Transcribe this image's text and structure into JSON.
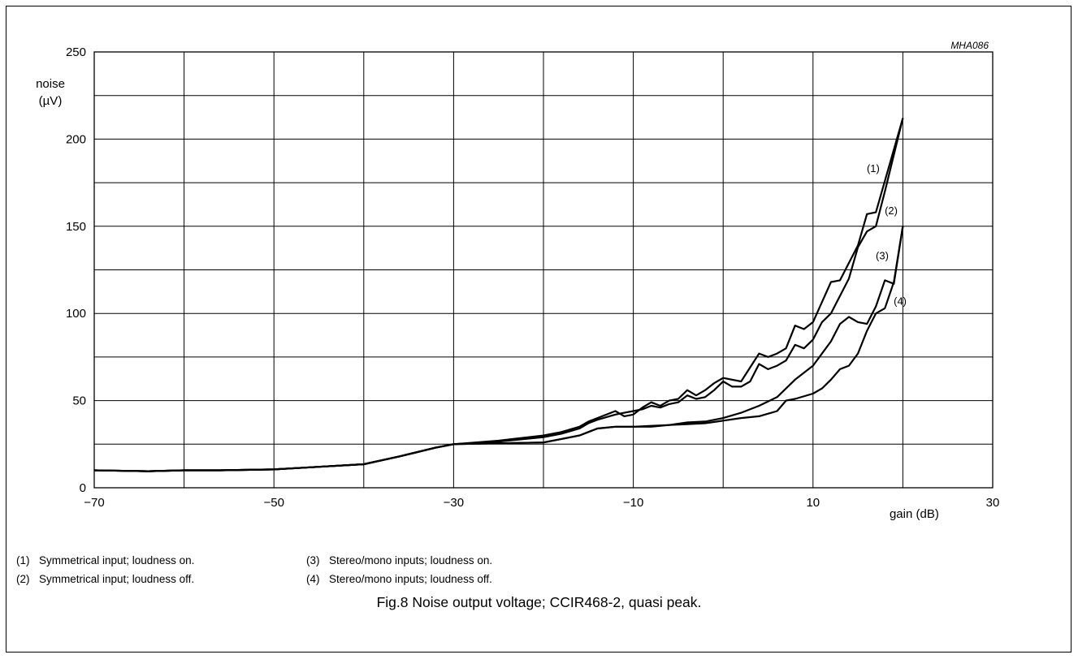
{
  "figure_code": "MHA086",
  "caption": "Fig.8  Noise output voltage; CCIR468-2, quasi peak.",
  "legend": [
    {
      "id": "(1)",
      "text": "Symmetrical input; loudness on."
    },
    {
      "id": "(2)",
      "text": "Symmetrical input; loudness off."
    },
    {
      "id": "(3)",
      "text": "Stereo/mono inputs; loudness on."
    },
    {
      "id": "(4)",
      "text": "Stereo/mono inputs; loudness off."
    }
  ],
  "chart_data": {
    "type": "line",
    "title": "Fig.8  Noise output voltage; CCIR468-2, quasi peak.",
    "xlabel": "gain (dB)",
    "ylabel_line1": "noise",
    "ylabel_line2": "(µV)",
    "xlim": [
      -70,
      30
    ],
    "ylim": [
      0,
      250
    ],
    "x_ticks": [
      -70,
      -50,
      -30,
      -10,
      10,
      30
    ],
    "x_tick_labels": [
      "−70",
      "−50",
      "−30",
      "−10",
      "10",
      "30"
    ],
    "y_ticks": [
      0,
      50,
      100,
      150,
      200,
      250
    ],
    "y_tick_labels": [
      "0",
      "50",
      "100",
      "150",
      "200",
      "250"
    ],
    "x_grid_step": 10,
    "y_grid_step": 25,
    "grid": true,
    "line_color": "#000000",
    "series": [
      {
        "name": "(1)",
        "points": [
          [
            -70,
            10
          ],
          [
            -64,
            9.5
          ],
          [
            -60,
            10
          ],
          [
            -56,
            10
          ],
          [
            -50,
            10.5
          ],
          [
            -45,
            12
          ],
          [
            -40,
            13.5
          ],
          [
            -36,
            18
          ],
          [
            -32,
            23
          ],
          [
            -30,
            25
          ],
          [
            -25,
            27
          ],
          [
            -20,
            30
          ],
          [
            -18,
            32
          ],
          [
            -16,
            35
          ],
          [
            -15,
            38
          ],
          [
            -14,
            40
          ],
          [
            -12,
            44
          ],
          [
            -11,
            41
          ],
          [
            -10,
            42
          ],
          [
            -9,
            46
          ],
          [
            -8,
            49
          ],
          [
            -7,
            47
          ],
          [
            -6,
            50
          ],
          [
            -5,
            51
          ],
          [
            -4,
            56
          ],
          [
            -3,
            53
          ],
          [
            -2,
            56
          ],
          [
            -1,
            60
          ],
          [
            0,
            63
          ],
          [
            2,
            61
          ],
          [
            4,
            77
          ],
          [
            5,
            75
          ],
          [
            6,
            77
          ],
          [
            7,
            80
          ],
          [
            8,
            93
          ],
          [
            9,
            91
          ],
          [
            10,
            95
          ],
          [
            12,
            118
          ],
          [
            13,
            119
          ],
          [
            15,
            139
          ],
          [
            16,
            157
          ],
          [
            17,
            158
          ],
          [
            20,
            212
          ]
        ]
      },
      {
        "name": "(2)",
        "points": [
          [
            -70,
            10
          ],
          [
            -64,
            9.5
          ],
          [
            -60,
            10
          ],
          [
            -56,
            10
          ],
          [
            -50,
            10.5
          ],
          [
            -45,
            12
          ],
          [
            -40,
            13.5
          ],
          [
            -36,
            18
          ],
          [
            -32,
            23
          ],
          [
            -30,
            25
          ],
          [
            -25,
            26.5
          ],
          [
            -20,
            29
          ],
          [
            -18,
            31
          ],
          [
            -16,
            34
          ],
          [
            -15,
            37
          ],
          [
            -14,
            39
          ],
          [
            -12,
            42
          ],
          [
            -11,
            43
          ],
          [
            -10,
            44
          ],
          [
            -9,
            45
          ],
          [
            -8,
            47
          ],
          [
            -7,
            46
          ],
          [
            -6,
            48
          ],
          [
            -5,
            49
          ],
          [
            -4,
            53
          ],
          [
            -3,
            51
          ],
          [
            -2,
            52
          ],
          [
            -1,
            56
          ],
          [
            0,
            61
          ],
          [
            1,
            58
          ],
          [
            2,
            58
          ],
          [
            3,
            61
          ],
          [
            4,
            71
          ],
          [
            5,
            68
          ],
          [
            6,
            70
          ],
          [
            7,
            73
          ],
          [
            8,
            82
          ],
          [
            9,
            80
          ],
          [
            10,
            85
          ],
          [
            11,
            95
          ],
          [
            12,
            100
          ],
          [
            14,
            120
          ],
          [
            15,
            138
          ],
          [
            16,
            147
          ],
          [
            17,
            150
          ],
          [
            18,
            170
          ],
          [
            20,
            212
          ]
        ]
      },
      {
        "name": "(3)",
        "points": [
          [
            -70,
            10
          ],
          [
            -64,
            9.5
          ],
          [
            -60,
            10
          ],
          [
            -56,
            10
          ],
          [
            -50,
            10.5
          ],
          [
            -45,
            12
          ],
          [
            -40,
            13.5
          ],
          [
            -36,
            18
          ],
          [
            -32,
            23
          ],
          [
            -30,
            25
          ],
          [
            -25,
            25.5
          ],
          [
            -20,
            26
          ],
          [
            -18,
            28
          ],
          [
            -16,
            30
          ],
          [
            -15,
            32
          ],
          [
            -14,
            34
          ],
          [
            -12,
            35
          ],
          [
            -10,
            35
          ],
          [
            -8,
            35.5
          ],
          [
            -6,
            36
          ],
          [
            -4,
            37.5
          ],
          [
            -2,
            38
          ],
          [
            0,
            40
          ],
          [
            2,
            43
          ],
          [
            4,
            47
          ],
          [
            6,
            52
          ],
          [
            8,
            62
          ],
          [
            10,
            70
          ],
          [
            12,
            84
          ],
          [
            13,
            94
          ],
          [
            14,
            98
          ],
          [
            15,
            95
          ],
          [
            16,
            94
          ],
          [
            17,
            104
          ],
          [
            18,
            119
          ],
          [
            19,
            117
          ],
          [
            20,
            150
          ]
        ]
      },
      {
        "name": "(4)",
        "points": [
          [
            -70,
            10
          ],
          [
            -64,
            9.5
          ],
          [
            -60,
            10
          ],
          [
            -56,
            10
          ],
          [
            -50,
            10.5
          ],
          [
            -45,
            12
          ],
          [
            -40,
            13.5
          ],
          [
            -36,
            18
          ],
          [
            -32,
            23
          ],
          [
            -30,
            25
          ],
          [
            -25,
            25.5
          ],
          [
            -20,
            26
          ],
          [
            -18,
            28
          ],
          [
            -16,
            30
          ],
          [
            -15,
            32
          ],
          [
            -14,
            34
          ],
          [
            -12,
            35
          ],
          [
            -10,
            35
          ],
          [
            -8,
            35
          ],
          [
            -6,
            36
          ],
          [
            -4,
            36.5
          ],
          [
            -2,
            37
          ],
          [
            0,
            38.5
          ],
          [
            2,
            40
          ],
          [
            4,
            41
          ],
          [
            6,
            44
          ],
          [
            7,
            50
          ],
          [
            8,
            51
          ],
          [
            10,
            54
          ],
          [
            11,
            57
          ],
          [
            12,
            62
          ],
          [
            13,
            68
          ],
          [
            14,
            70
          ],
          [
            15,
            77
          ],
          [
            16,
            90
          ],
          [
            17,
            100
          ],
          [
            18,
            103
          ],
          [
            19,
            118
          ],
          [
            20,
            150
          ]
        ]
      }
    ],
    "series_labels": [
      {
        "text": "(1)",
        "x": 16.7,
        "y": 181
      },
      {
        "text": "(2)",
        "x": 18.7,
        "y": 157
      },
      {
        "text": "(3)",
        "x": 17.7,
        "y": 131
      },
      {
        "text": "(4)",
        "x": 19.7,
        "y": 105
      }
    ]
  }
}
